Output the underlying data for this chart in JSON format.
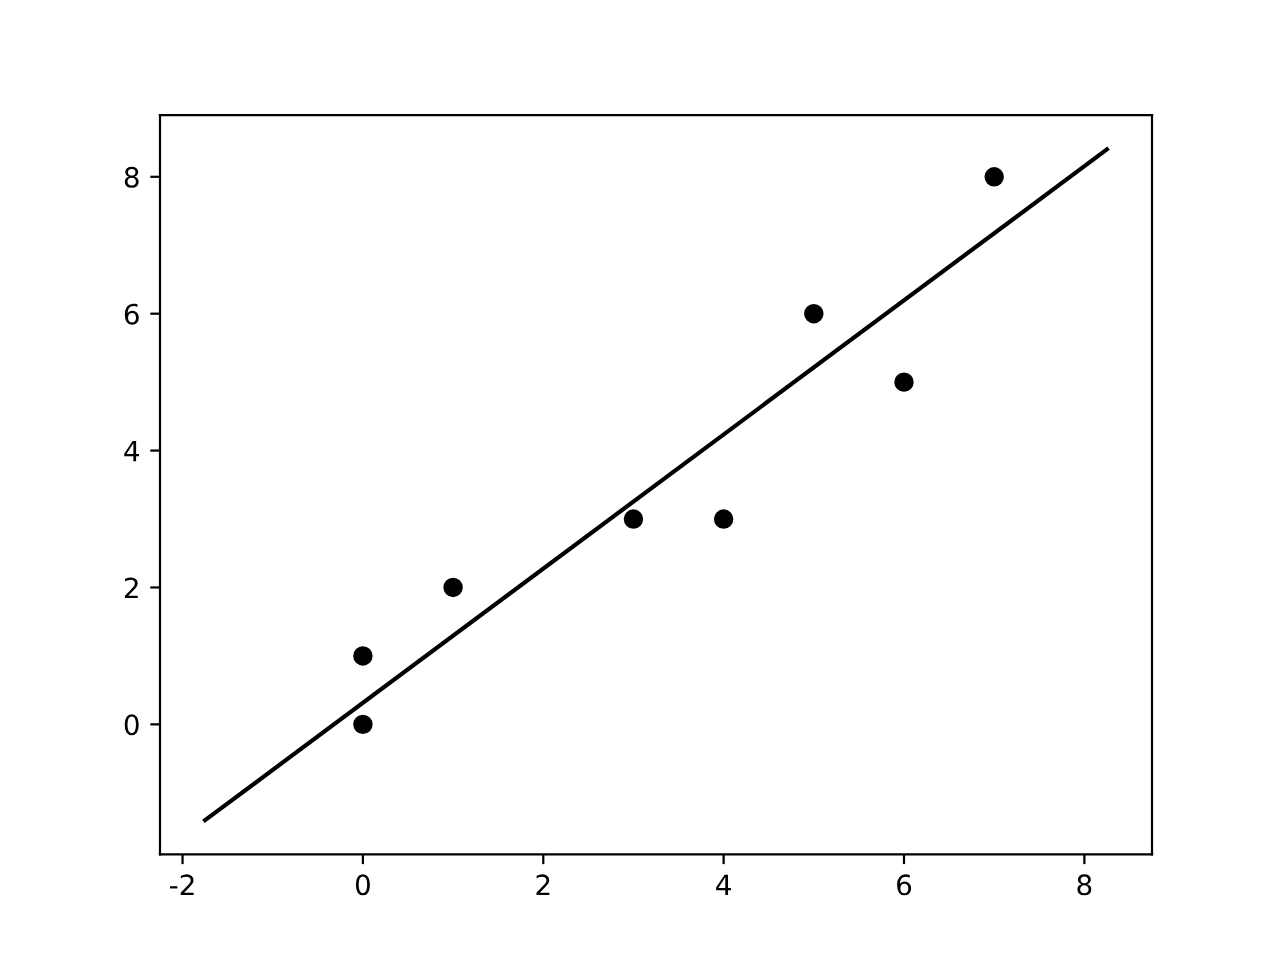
{
  "chart_data": {
    "type": "scatter",
    "series": [
      {
        "color": "#000000",
        "x": [
          0,
          0,
          1,
          3,
          4,
          5,
          6,
          7
        ],
        "values": [
          0,
          1,
          2,
          3,
          3,
          6,
          5,
          8
        ],
        "marker": "circle"
      },
      {
        "type": "line",
        "color": "#000000",
        "x": [
          -1.75,
          8.25
        ],
        "values": [
          -1.4,
          8.4
        ],
        "marker": "none",
        "line_style": "solid"
      }
    ],
    "xlim": [
      -2.25,
      8.75
    ],
    "ylim": [
      -1.9,
      8.9
    ],
    "xticks": [
      -2,
      0,
      2,
      4,
      6,
      8
    ],
    "yticks": [
      0,
      2,
      4,
      6,
      8
    ],
    "grid": false,
    "legend": false
  }
}
